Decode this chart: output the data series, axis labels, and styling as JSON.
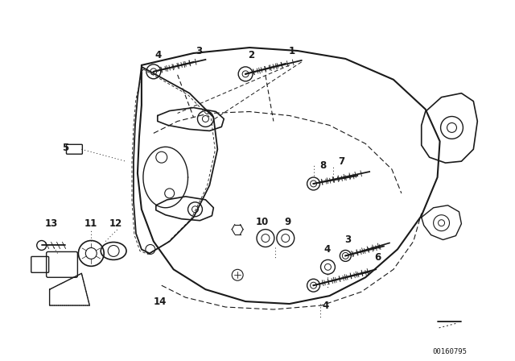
{
  "bg_color": "#ffffff",
  "line_color": "#1a1a1a",
  "fig_width": 6.4,
  "fig_height": 4.48,
  "dpi": 100,
  "watermark": "00160795"
}
